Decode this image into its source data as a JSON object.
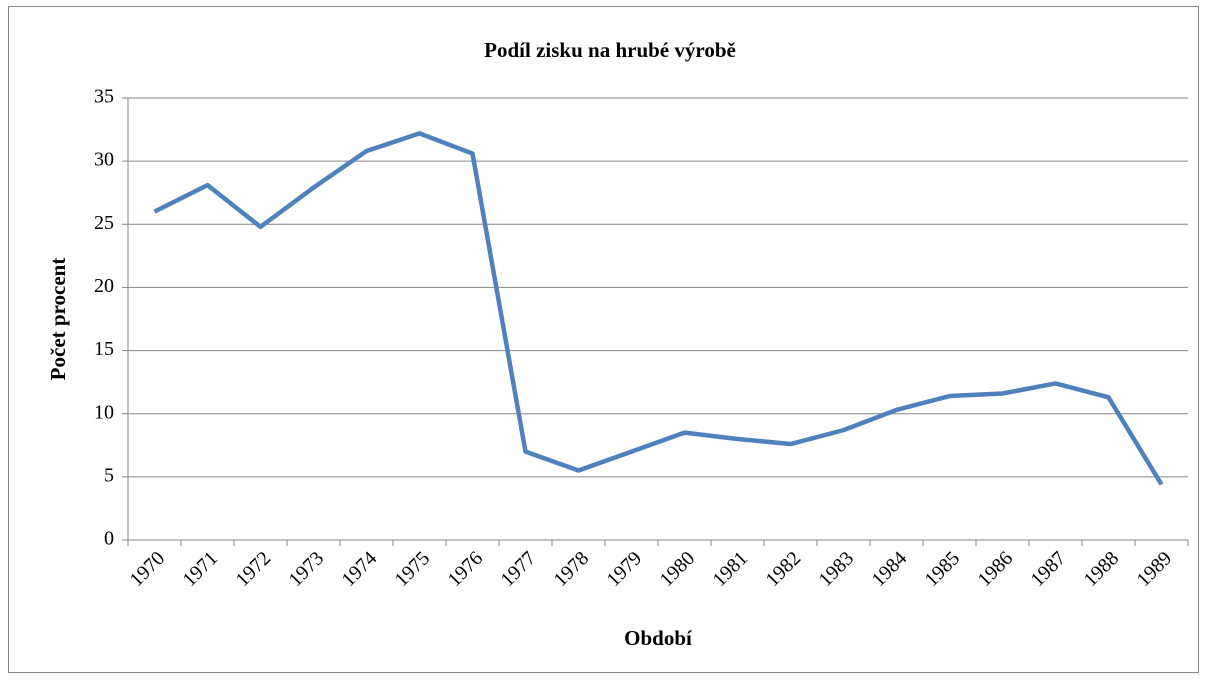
{
  "chart_data": {
    "type": "line",
    "title": "Podíl zisku na hrubé výrobě",
    "x_label": "Období",
    "y_label": "Počet procent",
    "categories": [
      "1970",
      "1971",
      "1972",
      "1973",
      "1974",
      "1975",
      "1976",
      "1977",
      "1978",
      "1979",
      "1980",
      "1981",
      "1982",
      "1983",
      "1984",
      "1985",
      "1986",
      "1987",
      "1988",
      "1989"
    ],
    "values": [
      26,
      28.1,
      24.8,
      27.9,
      30.8,
      32.2,
      30.6,
      7,
      5.5,
      7,
      8.5,
      8,
      7.6,
      8.7,
      10.3,
      11.4,
      11.6,
      12.4,
      11.3,
      4.4
    ],
    "color": "#4f81bd",
    "ylim": [
      0,
      35
    ],
    "yticks": [
      0,
      5,
      10,
      15,
      20,
      25,
      30,
      35
    ],
    "grid": true
  }
}
